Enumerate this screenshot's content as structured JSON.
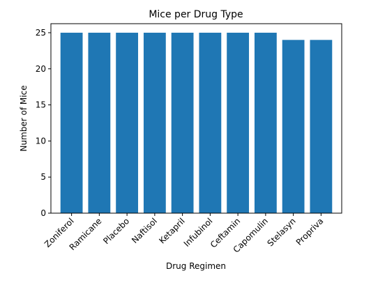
{
  "chart_data": {
    "type": "bar",
    "title": "Mice per Drug Type",
    "xlabel": "Drug Regimen",
    "ylabel": "Number of Mice",
    "categories": [
      "Zoniferol",
      "Ramicane",
      "Placebo",
      "Naftisol",
      "Ketapril",
      "Infubinol",
      "Ceftamin",
      "Capomulin",
      "Stelasyn",
      "Propriva"
    ],
    "values": [
      25,
      25,
      25,
      25,
      25,
      25,
      25,
      25,
      24,
      24
    ],
    "ylim": [
      0,
      26.25
    ],
    "yticks": [
      0,
      5,
      10,
      15,
      20,
      25
    ],
    "grid": false,
    "bar_color": "#1f77b4"
  }
}
